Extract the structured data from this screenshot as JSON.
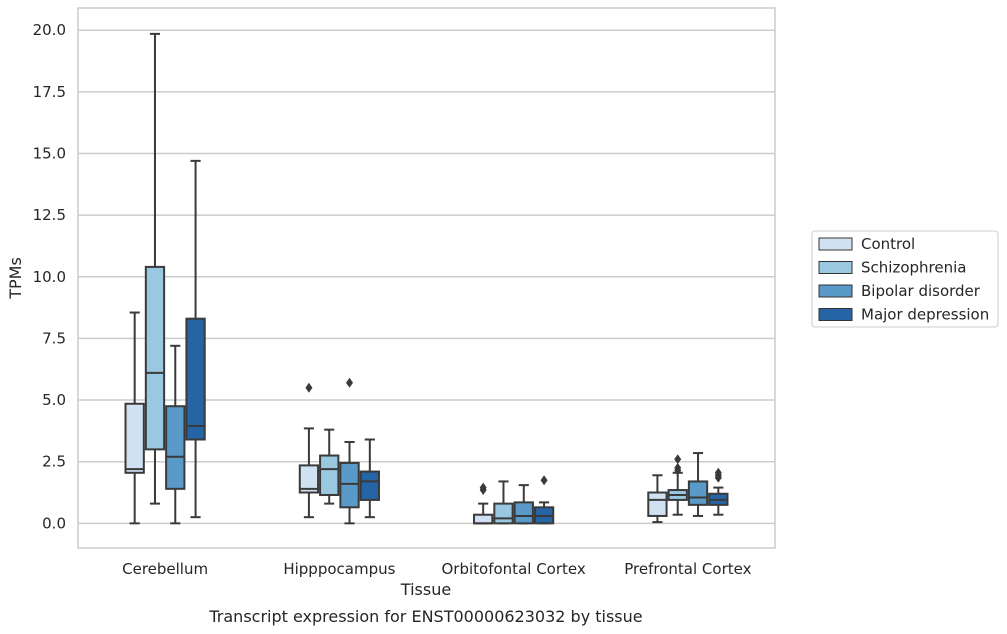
{
  "caption": "Transcript expression for ENST00000623032 by tissue",
  "chart_data": {
    "type": "box",
    "xlabel": "Tissue",
    "ylabel": "TPMs",
    "ylim": [
      -1,
      20.9
    ],
    "yticks": [
      "0.0",
      "2.5",
      "5.0",
      "7.5",
      "10.0",
      "12.5",
      "15.0",
      "17.5",
      "20.0"
    ],
    "ytick_values": [
      0,
      2.5,
      5,
      7.5,
      10,
      12.5,
      15,
      17.5,
      20
    ],
    "grid": "horizontal",
    "legend_position": "right",
    "categories": [
      "Cerebellum",
      "Hipppocampus",
      "Orbitofontal Cortex",
      "Prefrontal Cortex"
    ],
    "series": [
      {
        "name": "Control",
        "color": "#d0e1f2",
        "boxes": [
          {
            "whisker_low": 0.0,
            "q1": 2.05,
            "median": 2.2,
            "q3": 4.85,
            "whisker_high": 8.55,
            "outliers": []
          },
          {
            "whisker_low": 0.25,
            "q1": 1.25,
            "median": 1.4,
            "q3": 2.35,
            "whisker_high": 3.85,
            "outliers": [
              5.5
            ]
          },
          {
            "whisker_low": 0.0,
            "q1": 0.0,
            "median": 0.0,
            "q3": 0.35,
            "whisker_high": 0.8,
            "outliers": [
              1.35,
              1.45
            ]
          },
          {
            "whisker_low": 0.05,
            "q1": 0.3,
            "median": 0.95,
            "q3": 1.25,
            "whisker_high": 1.95,
            "outliers": []
          }
        ]
      },
      {
        "name": "Schizophrenia",
        "color": "#9ac8e0",
        "boxes": [
          {
            "whisker_low": 0.8,
            "q1": 3.0,
            "median": 6.1,
            "q3": 10.4,
            "whisker_high": 19.85,
            "outliers": []
          },
          {
            "whisker_low": 0.8,
            "q1": 1.15,
            "median": 2.2,
            "q3": 2.75,
            "whisker_high": 3.8,
            "outliers": []
          },
          {
            "whisker_low": 0.0,
            "q1": 0.0,
            "median": 0.2,
            "q3": 0.8,
            "whisker_high": 1.7,
            "outliers": []
          },
          {
            "whisker_low": 0.35,
            "q1": 0.95,
            "median": 1.15,
            "q3": 1.35,
            "whisker_high": 2.05,
            "outliers": [
              2.15,
              2.25,
              2.6
            ]
          }
        ]
      },
      {
        "name": "Bipolar disorder",
        "color": "#5a9ac9",
        "boxes": [
          {
            "whisker_low": 0.0,
            "q1": 1.4,
            "median": 2.7,
            "q3": 4.75,
            "whisker_high": 7.2,
            "outliers": []
          },
          {
            "whisker_low": 0.0,
            "q1": 0.65,
            "median": 1.6,
            "q3": 2.45,
            "whisker_high": 3.3,
            "outliers": [
              5.7
            ]
          },
          {
            "whisker_low": 0.0,
            "q1": 0.0,
            "median": 0.3,
            "q3": 0.85,
            "whisker_high": 1.55,
            "outliers": []
          },
          {
            "whisker_low": 0.3,
            "q1": 0.75,
            "median": 1.05,
            "q3": 1.7,
            "whisker_high": 2.85,
            "outliers": []
          }
        ]
      },
      {
        "name": "Major depression",
        "color": "#2565a6",
        "boxes": [
          {
            "whisker_low": 0.25,
            "q1": 3.4,
            "median": 3.95,
            "q3": 8.3,
            "whisker_high": 14.7,
            "outliers": []
          },
          {
            "whisker_low": 0.25,
            "q1": 0.95,
            "median": 1.7,
            "q3": 2.1,
            "whisker_high": 3.4,
            "outliers": []
          },
          {
            "whisker_low": 0.0,
            "q1": 0.0,
            "median": 0.3,
            "q3": 0.65,
            "whisker_high": 0.85,
            "outliers": [
              1.75
            ]
          },
          {
            "whisker_low": 0.35,
            "q1": 0.75,
            "median": 0.95,
            "q3": 1.2,
            "whisker_high": 1.45,
            "outliers": [
              1.85,
              1.95,
              2.05
            ]
          }
        ]
      }
    ]
  }
}
